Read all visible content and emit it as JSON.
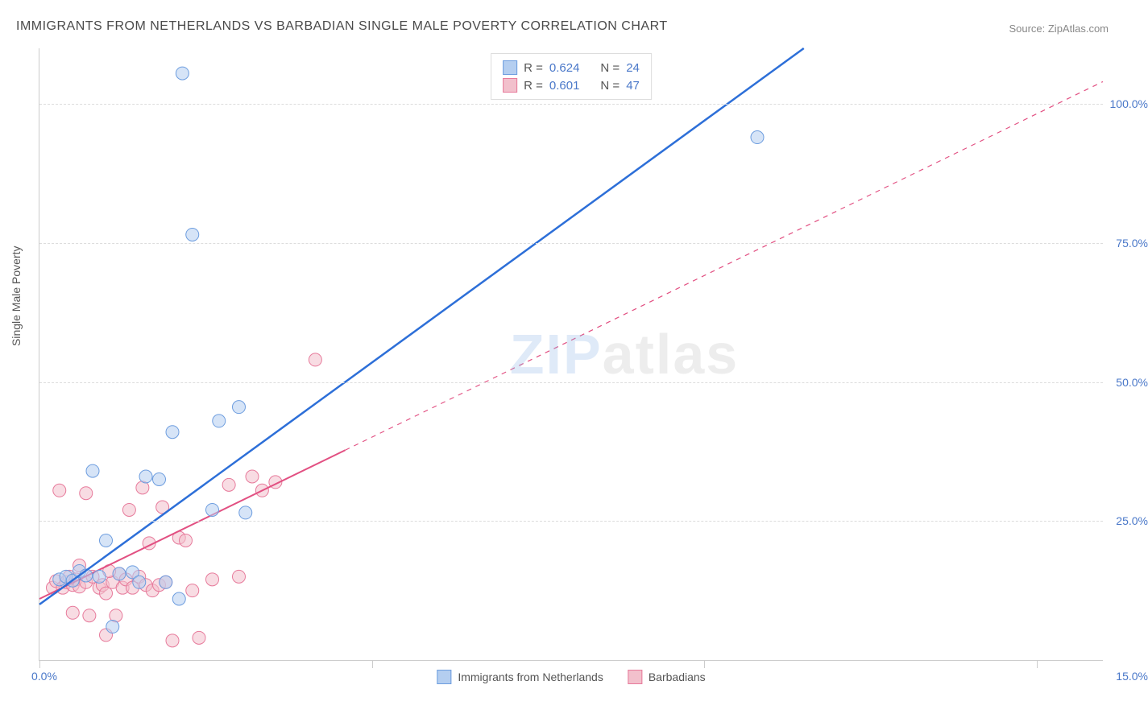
{
  "title": "IMMIGRANTS FROM NETHERLANDS VS BARBADIAN SINGLE MALE POVERTY CORRELATION CHART",
  "source": "Source: ZipAtlas.com",
  "ylabel": "Single Male Poverty",
  "xlim": [
    0,
    16
  ],
  "ylim": [
    0,
    110
  ],
  "grid_y": [
    25,
    50,
    75,
    100
  ],
  "y_tick_labels": [
    "25.0%",
    "50.0%",
    "75.0%",
    "100.0%"
  ],
  "x_tick_positions": [
    0,
    5,
    10,
    15
  ],
  "x_left_label": "0.0%",
  "x_right_label": "15.0%",
  "series": {
    "a": {
      "label": "Immigrants from Netherlands",
      "color_fill": "#b4cef0",
      "color_stroke": "#6d9ddf",
      "marker_radius": 8,
      "line_color": "#2d6fd8",
      "line_width": 2.5,
      "dash": "none",
      "r": "0.624",
      "n": "24",
      "reg_x1": 0,
      "reg_y1": 10,
      "reg_x2": 11.5,
      "reg_y2": 110,
      "points": [
        [
          0.3,
          14.5
        ],
        [
          0.4,
          15.0
        ],
        [
          0.5,
          14.3
        ],
        [
          0.6,
          16.0
        ],
        [
          0.7,
          15.2
        ],
        [
          0.8,
          34.0
        ],
        [
          0.9,
          15.0
        ],
        [
          1.0,
          21.5
        ],
        [
          1.1,
          6.0
        ],
        [
          1.4,
          15.8
        ],
        [
          1.5,
          14.0
        ],
        [
          1.6,
          33.0
        ],
        [
          1.8,
          32.5
        ],
        [
          1.9,
          14.0
        ],
        [
          2.0,
          41.0
        ],
        [
          2.1,
          11.0
        ],
        [
          2.15,
          105.5
        ],
        [
          2.3,
          76.5
        ],
        [
          2.6,
          27.0
        ],
        [
          2.7,
          43.0
        ],
        [
          3.0,
          45.5
        ],
        [
          3.1,
          26.5
        ],
        [
          10.8,
          94.0
        ],
        [
          1.2,
          15.5
        ]
      ]
    },
    "b": {
      "label": "Barbadians",
      "color_fill": "#f2c0cc",
      "color_stroke": "#e77a9b",
      "marker_radius": 8,
      "line_color": "#e25082",
      "line_width": 2,
      "dash": "6,6",
      "r": "0.601",
      "n": "47",
      "reg_x1": 0,
      "reg_y1": 11,
      "reg_x2": 16,
      "reg_y2": 104,
      "solid_until_x": 4.6,
      "points": [
        [
          0.2,
          13.0
        ],
        [
          0.25,
          14.2
        ],
        [
          0.3,
          30.5
        ],
        [
          0.35,
          13.0
        ],
        [
          0.4,
          14.0
        ],
        [
          0.45,
          15.0
        ],
        [
          0.5,
          13.5
        ],
        [
          0.5,
          8.5
        ],
        [
          0.55,
          14.5
        ],
        [
          0.6,
          13.2
        ],
        [
          0.6,
          17.0
        ],
        [
          0.7,
          30.0
        ],
        [
          0.7,
          14.0
        ],
        [
          0.75,
          8.0
        ],
        [
          0.8,
          15.0
        ],
        [
          0.9,
          13.0
        ],
        [
          0.95,
          13.5
        ],
        [
          1.0,
          12.0
        ],
        [
          1.0,
          4.5
        ],
        [
          1.1,
          14.0
        ],
        [
          1.15,
          8.0
        ],
        [
          1.2,
          15.5
        ],
        [
          1.25,
          13.0
        ],
        [
          1.3,
          14.5
        ],
        [
          1.35,
          27.0
        ],
        [
          1.4,
          13.0
        ],
        [
          1.5,
          15.0
        ],
        [
          1.55,
          31.0
        ],
        [
          1.6,
          13.5
        ],
        [
          1.65,
          21.0
        ],
        [
          1.7,
          12.5
        ],
        [
          1.8,
          13.5
        ],
        [
          1.85,
          27.5
        ],
        [
          1.9,
          14.0
        ],
        [
          2.0,
          3.5
        ],
        [
          2.1,
          22.0
        ],
        [
          2.2,
          21.5
        ],
        [
          2.3,
          12.5
        ],
        [
          2.4,
          4.0
        ],
        [
          2.6,
          14.5
        ],
        [
          2.85,
          31.5
        ],
        [
          3.0,
          15.0
        ],
        [
          3.2,
          33.0
        ],
        [
          3.35,
          30.5
        ],
        [
          3.55,
          32.0
        ],
        [
          4.15,
          54.0
        ],
        [
          1.05,
          16.0
        ]
      ]
    }
  },
  "legend_top_prefix_r": "R =",
  "legend_top_prefix_n": "N =",
  "watermark": {
    "text_a": "ZIP",
    "text_b": "atlas",
    "color_a": "#8fb5e8",
    "color_b": "#c0c0c0"
  },
  "background_color": "#ffffff",
  "grid_color": "#dddddd",
  "tick_label_color": "#4a78c9"
}
